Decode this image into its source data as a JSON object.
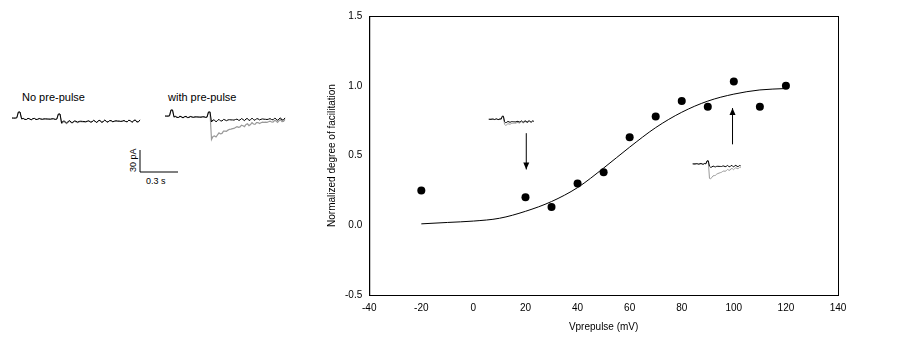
{
  "traces_panel": {
    "labels": [
      "No pre-pulse",
      "with pre-pulse"
    ],
    "scale_bar": {
      "current": "30 pA",
      "time": "0.3 s"
    }
  },
  "chart_data": {
    "type": "scatter",
    "x_label": "Vprepulse (mV)",
    "y_label": "Normalized degree of facilitation",
    "xlim": [
      -40,
      140
    ],
    "xticks": [
      -40,
      -20,
      0,
      20,
      40,
      60,
      80,
      100,
      120,
      140
    ],
    "ylim": [
      -0.5,
      1.5
    ],
    "yticks": [
      {
        "value": -0.5,
        "label": "-0.5"
      },
      {
        "value": 0,
        "label": "0.0"
      },
      {
        "value": 0.5,
        "label": "0.5"
      },
      {
        "value": 1,
        "label": "1.0"
      },
      {
        "value": 1.5,
        "label": "1.5"
      }
    ],
    "grid": false,
    "series": [
      {
        "type": "scatter",
        "marker": "circle",
        "color": "#000000",
        "x": [
          -20,
          20,
          30,
          40,
          50,
          60,
          70,
          80,
          90,
          100,
          110,
          120
        ],
        "values": [
          0.25,
          0.2,
          0.13,
          0.3,
          0.38,
          0.63,
          0.78,
          0.89,
          0.85,
          1.03,
          0.85,
          1.0
        ]
      },
      {
        "type": "line",
        "line_style": "solid",
        "color": "#000000",
        "x": [
          -20,
          -10,
          0,
          10,
          20,
          30,
          40,
          50,
          60,
          70,
          80,
          90,
          100,
          110,
          120
        ],
        "values": [
          0.01,
          0.02,
          0.03,
          0.05,
          0.1,
          0.17,
          0.27,
          0.41,
          0.56,
          0.7,
          0.81,
          0.89,
          0.94,
          0.97,
          0.98
        ]
      }
    ]
  }
}
